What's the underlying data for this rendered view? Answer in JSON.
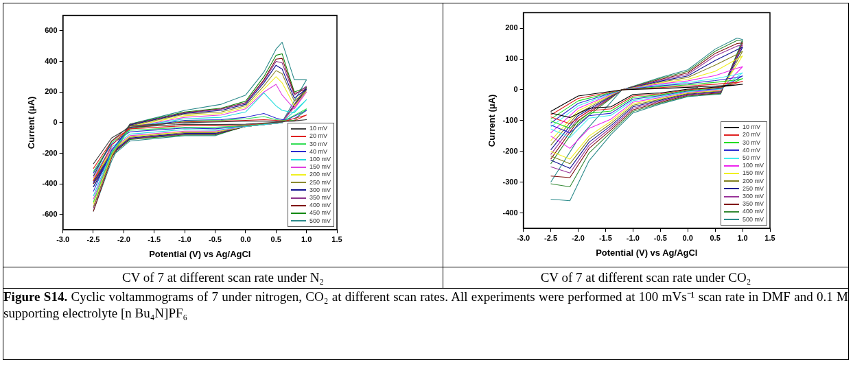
{
  "chart_data": [
    {
      "type": "line",
      "title": "CV of 7 at different scan rate under N₂",
      "xlabel": "Potential (V) vs Ag/AgCl",
      "ylabel": "Current (μA)",
      "annotations": [
        "Figure S14.",
        "Cyclic voltammograms of 7 under nitrogen, CO₂ at different scan rates.  All experiments were performed at 100 mVs⁻¹ scan rate in DMF and 0.1 M supporting electrolyte [n Bu₄N]PF₆"
      ],
      "x": [
        -2.5,
        -2.2,
        -1.9,
        -1.0,
        -0.4,
        0,
        0.3,
        0.5,
        0.6,
        0.8,
        1.0,
        0.6,
        0,
        -0.5,
        -1.0,
        -1.9,
        -2.2,
        -2.5
      ],
      "xlim": [
        -3.0,
        1.5
      ],
      "xticks": [
        {
          "value": -3.0,
          "label": "-3.0"
        },
        {
          "value": -2.5,
          "label": "-2.5"
        },
        {
          "value": -2.0,
          "label": "-2.0"
        },
        {
          "value": -1.5,
          "label": "-1.5"
        },
        {
          "value": -1.0,
          "label": "-1.0"
        },
        {
          "value": -0.5,
          "label": "-0.5"
        },
        {
          "value": 0,
          "label": "0.0"
        },
        {
          "value": 0.5,
          "label": "0.5"
        },
        {
          "value": 1.0,
          "label": "1.0"
        },
        {
          "value": 1.5,
          "label": "1.5"
        }
      ],
      "ylim": [
        -700,
        700
      ],
      "yticks": [
        -600,
        -400,
        -200,
        0,
        200,
        400,
        600
      ],
      "grid": false,
      "legend": "bottom right",
      "marker": "none",
      "line_style": "solid",
      "series": [
        {
          "name": "10 mV",
          "color": "#404040",
          "values": [
            -350,
            -120,
            -20,
            0,
            5,
            10,
            10,
            8,
            8,
            10,
            20,
            5,
            -10,
            -12,
            -10,
            -30,
            -100,
            -270
          ]
        },
        {
          "name": "20 mV",
          "color": "#e02020",
          "values": [
            -380,
            -150,
            -30,
            5,
            10,
            15,
            20,
            15,
            12,
            12,
            50,
            5,
            -15,
            -20,
            -20,
            -40,
            -120,
            -300
          ]
        },
        {
          "name": "30 mV",
          "color": "#33dd55",
          "values": [
            -520,
            -200,
            -40,
            10,
            15,
            25,
            40,
            20,
            15,
            15,
            90,
            5,
            -20,
            -30,
            -30,
            -50,
            -130,
            -320
          ]
        },
        {
          "name": "40 mV",
          "color": "#2a2ad0",
          "values": [
            -450,
            -180,
            -35,
            15,
            20,
            35,
            60,
            30,
            20,
            25,
            80,
            5,
            -20,
            -40,
            -35,
            -60,
            -140,
            -330
          ]
        },
        {
          "name": "100 mV",
          "color": "#22dddd",
          "values": [
            -480,
            -190,
            -30,
            25,
            35,
            70,
            195,
            110,
            80,
            65,
            150,
            0,
            -25,
            -50,
            -45,
            -75,
            -160,
            -350
          ]
        },
        {
          "name": "150 mV",
          "color": "#e040e0",
          "values": [
            -500,
            -200,
            -30,
            35,
            50,
            90,
            200,
            250,
            180,
            90,
            200,
            0,
            -25,
            -55,
            -55,
            -85,
            -170,
            -360
          ]
        },
        {
          "name": "200 mV",
          "color": "#f0f020",
          "values": [
            -530,
            -210,
            -25,
            45,
            60,
            100,
            220,
            300,
            260,
            110,
            200,
            0,
            -25,
            -60,
            -60,
            -90,
            -180,
            -370
          ]
        },
        {
          "name": "250 mV",
          "color": "#8a8a30",
          "values": [
            -550,
            -220,
            -20,
            55,
            70,
            110,
            240,
            340,
            320,
            140,
            210,
            0,
            -25,
            -65,
            -65,
            -95,
            -190,
            -380
          ]
        },
        {
          "name": "300 mV",
          "color": "#101090",
          "values": [
            -420,
            -200,
            -15,
            60,
            80,
            120,
            260,
            375,
            350,
            160,
            220,
            0,
            -25,
            -70,
            -70,
            -100,
            -200,
            -390
          ]
        },
        {
          "name": "350 mV",
          "color": "#8a308a",
          "values": [
            -560,
            -215,
            -12,
            63,
            88,
            128,
            272,
            400,
            390,
            180,
            238,
            4,
            -21,
            -74,
            -74,
            -104,
            -206,
            -396
          ]
        },
        {
          "name": "400 mV",
          "color": "#801010",
          "values": [
            -580,
            -230,
            -15,
            65,
            90,
            130,
            280,
            415,
            420,
            190,
            220,
            0,
            -25,
            -75,
            -75,
            -105,
            -210,
            -400
          ]
        },
        {
          "name": "450 mV",
          "color": "#118811",
          "values": [
            -380,
            -190,
            -10,
            70,
            95,
            140,
            300,
            440,
            450,
            200,
            230,
            0,
            -25,
            -80,
            -80,
            -110,
            -210,
            -400
          ]
        },
        {
          "name": "500 mV",
          "color": "#2a8a8a",
          "values": [
            -580,
            -250,
            -10,
            80,
            120,
            180,
            330,
            480,
            525,
            280,
            280,
            5,
            -20,
            -85,
            -85,
            -120,
            -220,
            -420
          ]
        }
      ]
    },
    {
      "type": "line",
      "title": "CV of 7 at different scan rate under CO₂",
      "xlabel": "Potential (V) vs Ag/AgCl",
      "ylabel": "Current (μA)",
      "x": [
        -2.5,
        -2.0,
        -1.2,
        -0.5,
        0,
        0.5,
        0.9,
        1.0,
        0.6,
        0,
        -0.5,
        -1.0,
        -1.4,
        -1.8,
        -2.15,
        -2.5
      ],
      "xlim": [
        -3.0,
        1.5
      ],
      "xticks": [
        {
          "value": -3.0,
          "label": "-3.0"
        },
        {
          "value": -2.5,
          "label": "-2.5"
        },
        {
          "value": -2.0,
          "label": "-2.0"
        },
        {
          "value": -1.5,
          "label": "-1.5"
        },
        {
          "value": -1.0,
          "label": "-1.0"
        },
        {
          "value": -0.5,
          "label": "-0.5"
        },
        {
          "value": 0,
          "label": "0.0"
        },
        {
          "value": 0.5,
          "label": "0.5"
        },
        {
          "value": 1.0,
          "label": "1.0"
        },
        {
          "value": 1.5,
          "label": "1.5"
        }
      ],
      "ylim": [
        -450,
        250
      ],
      "yticks": [
        -400,
        -300,
        -200,
        -100,
        0,
        100,
        200
      ],
      "grid": false,
      "legend": "bottom right",
      "marker": "none",
      "line_style": "solid",
      "series": [
        {
          "name": "10 mV",
          "color": "#000000",
          "values": [
            -70,
            -20,
            0,
            4,
            8,
            12,
            16,
            18,
            10,
            2,
            -10,
            -15,
            -55,
            -60,
            -90,
            -75
          ]
        },
        {
          "name": "20 mV",
          "color": "#e02020",
          "values": [
            -82,
            -28,
            0,
            7,
            12,
            18,
            24,
            27,
            8,
            0,
            -13,
            -20,
            -62,
            -68,
            -110,
            -88
          ]
        },
        {
          "name": "30 mV",
          "color": "#22dd22",
          "values": [
            -95,
            -36,
            0,
            10,
            16,
            24,
            32,
            36,
            6,
            -2,
            -16,
            -25,
            -69,
            -76,
            -125,
            -101
          ]
        },
        {
          "name": "40 mV",
          "color": "#2a2ad0",
          "values": [
            -108,
            -44,
            0,
            13,
            20,
            30,
            40,
            45,
            4,
            -4,
            -19,
            -30,
            -76,
            -84,
            -140,
            -114
          ]
        },
        {
          "name": "50 mV",
          "color": "#44eeee",
          "values": [
            -121,
            -52,
            0,
            16,
            24,
            36,
            50,
            55,
            2,
            -6,
            -22,
            -35,
            -83,
            -92,
            -155,
            -127
          ]
        },
        {
          "name": "100 mV",
          "color": "#ee22ee",
          "values": [
            -140,
            -60,
            0,
            19,
            29,
            46,
            70,
            75,
            0,
            -8,
            -25,
            -40,
            -95,
            -125,
            -190,
            -150
          ]
        },
        {
          "name": "150 mV",
          "color": "#f0f020",
          "values": [
            -165,
            -68,
            0,
            22,
            34,
            60,
            100,
            110,
            -2,
            -10,
            -28,
            -45,
            -102,
            -150,
            -225,
            -200
          ]
        },
        {
          "name": "200 mV",
          "color": "#808020",
          "values": [
            -180,
            -76,
            0,
            25,
            40,
            80,
            115,
            125,
            -4,
            -12,
            -31,
            -50,
            -109,
            -160,
            -240,
            -215
          ]
        },
        {
          "name": "250 mV",
          "color": "#101090",
          "values": [
            -195,
            -84,
            0,
            28,
            45,
            95,
            130,
            138,
            -6,
            -14,
            -34,
            -55,
            -116,
            -170,
            -255,
            -228
          ]
        },
        {
          "name": "300 mV",
          "color": "#993399",
          "values": [
            -210,
            -92,
            0,
            31,
            50,
            110,
            142,
            145,
            -8,
            -16,
            -37,
            -60,
            -123,
            -180,
            -270,
            -250
          ]
        },
        {
          "name": "350 mV",
          "color": "#801010",
          "values": [
            -225,
            -100,
            0,
            34,
            55,
            118,
            150,
            152,
            -10,
            -18,
            -40,
            -65,
            -130,
            -190,
            -285,
            -280
          ]
        },
        {
          "name": "400 mV",
          "color": "#338833",
          "values": [
            -240,
            -110,
            0,
            37,
            60,
            125,
            160,
            158,
            -12,
            -20,
            -43,
            -70,
            -137,
            -205,
            -315,
            -305
          ]
        },
        {
          "name": "500 mV",
          "color": "#2a8a8a",
          "values": [
            -300,
            -160,
            0,
            40,
            65,
            132,
            168,
            163,
            -14,
            -22,
            -46,
            -75,
            -145,
            -230,
            -360,
            -355
          ]
        }
      ]
    }
  ]
}
